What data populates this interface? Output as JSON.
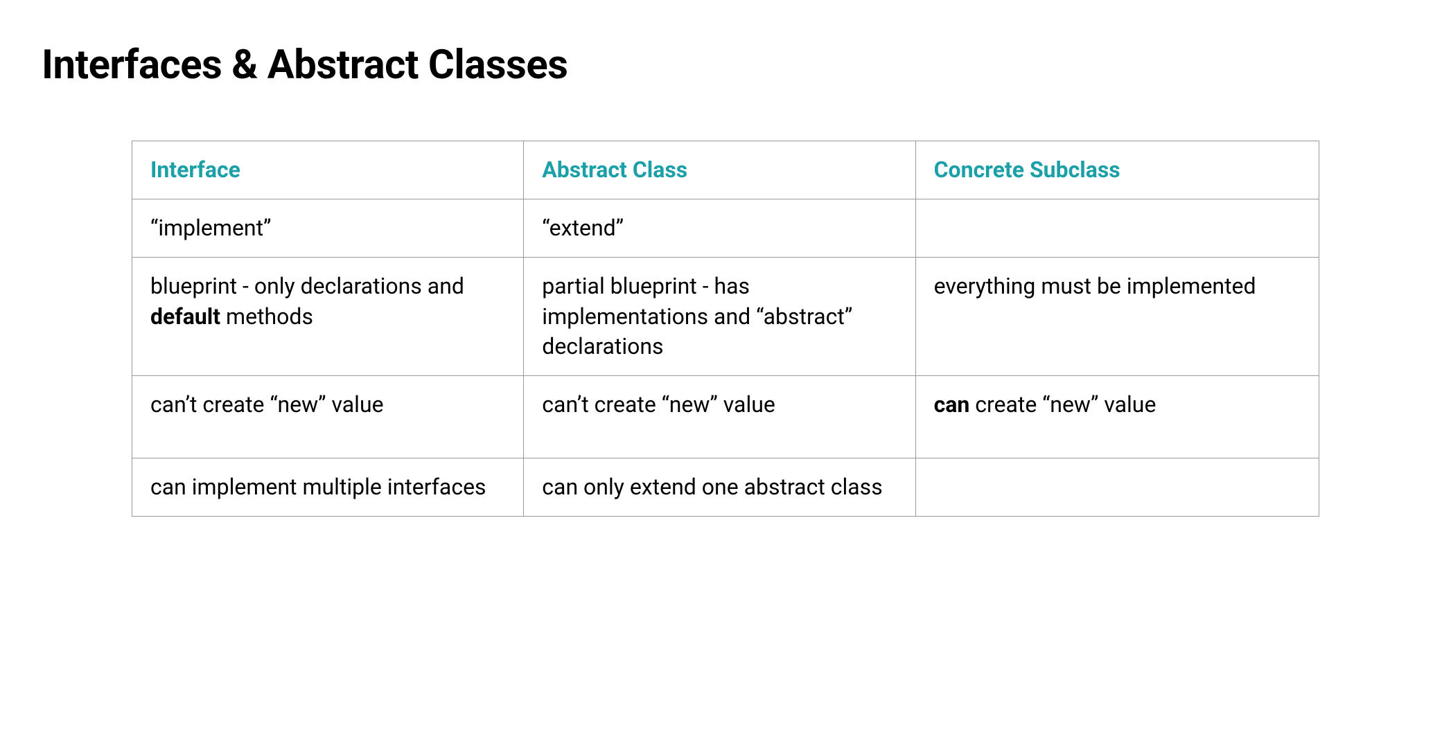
{
  "title": "Interfaces & Abstract Classes",
  "table": {
    "type": "table",
    "header_color": "#1ba0a8",
    "border_color": "#999999",
    "background_color": "#ffffff",
    "text_color": "#000000",
    "header_fontsize": 32,
    "cell_fontsize": 32,
    "columns": [
      {
        "label": "Interface",
        "width_pct": 33
      },
      {
        "label": "Abstract Class",
        "width_pct": 33
      },
      {
        "label": "Concrete Subclass",
        "width_pct": 34
      }
    ],
    "rows": [
      {
        "interface": "“implement”",
        "abstract_class": "“extend”",
        "concrete_subclass": ""
      },
      {
        "interface_html": "blueprint - only declarations and <strong>default</strong> methods",
        "abstract_class": "partial blueprint - has implementations and “abstract” declarations",
        "concrete_subclass": "everything must be implemented"
      },
      {
        "interface": "can’t create “new” value",
        "abstract_class": "can’t create “new” value",
        "concrete_subclass_html": "<strong>can</strong> create “new” value"
      },
      {
        "interface": "can implement multiple interfaces",
        "abstract_class": "can only extend one abstract class",
        "concrete_subclass": ""
      }
    ]
  }
}
